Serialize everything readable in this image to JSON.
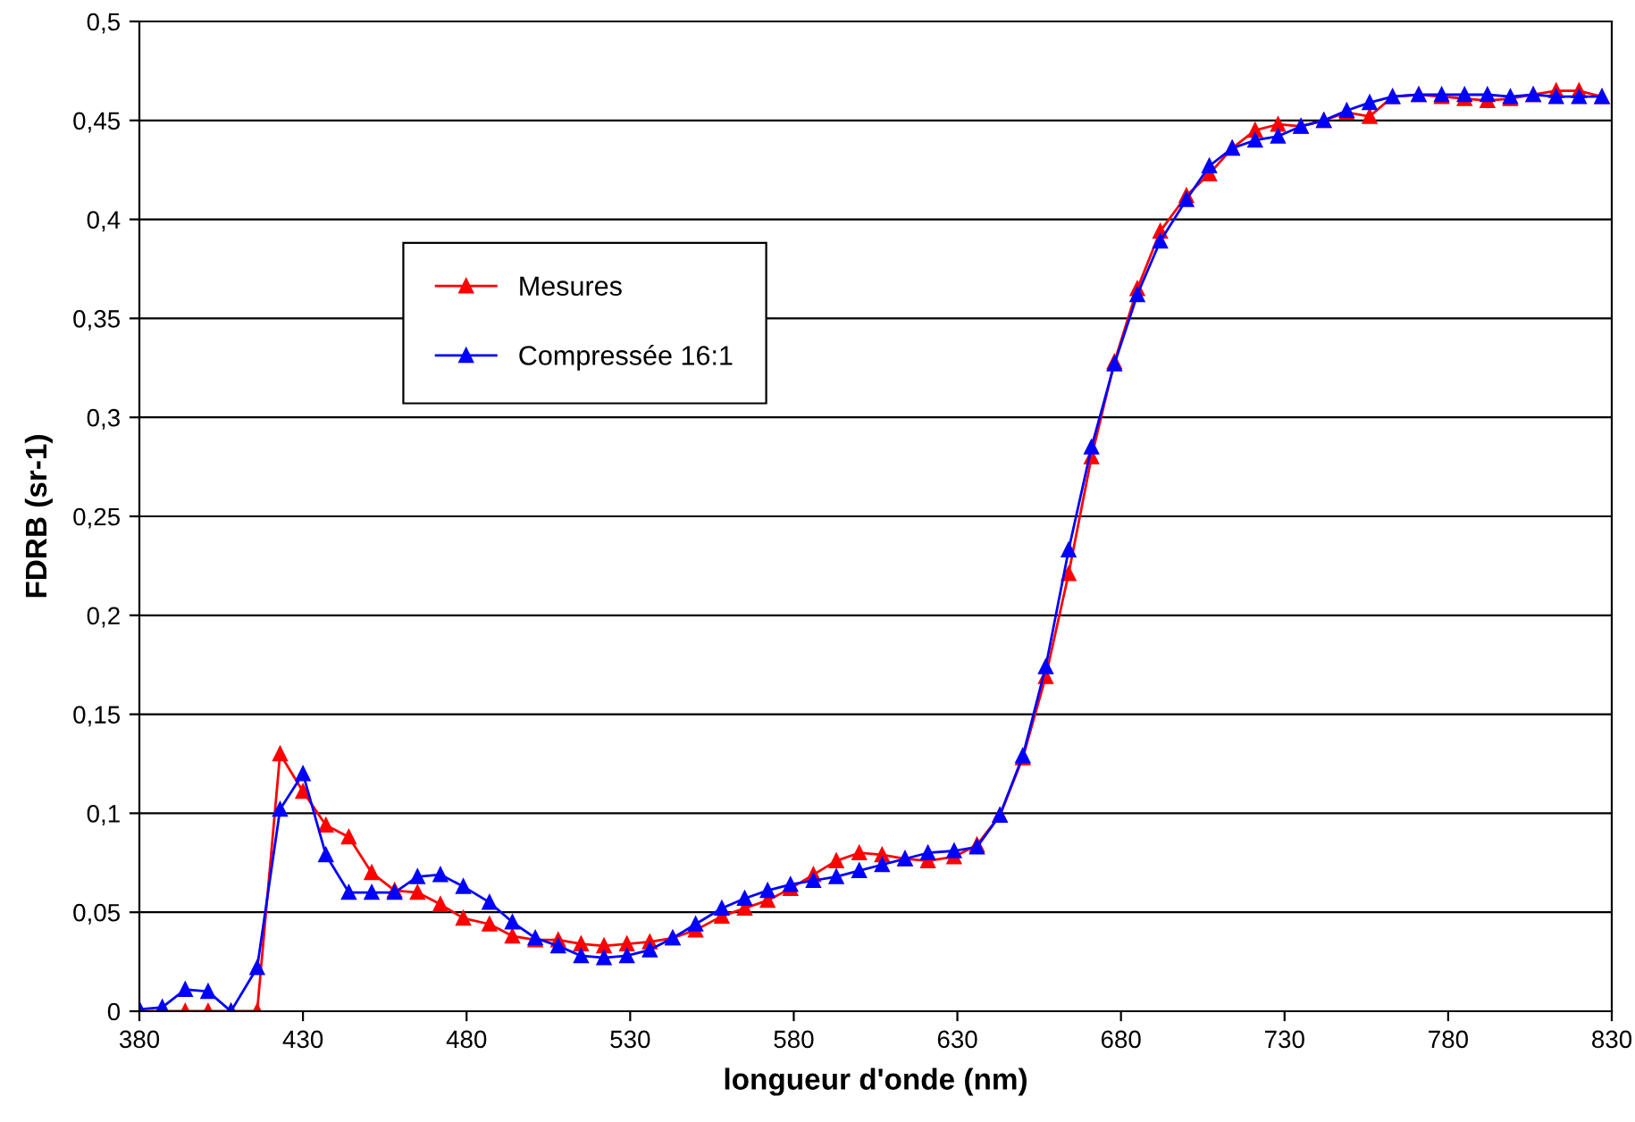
{
  "chart_data": {
    "type": "line",
    "xlabel": "longueur d'onde (nm)",
    "ylabel": "FDRB (sr-1)",
    "x": [
      380,
      387,
      394,
      401,
      408,
      416,
      423,
      430,
      437,
      444,
      451,
      458,
      465,
      472,
      479,
      487,
      494,
      501,
      508,
      515,
      522,
      529,
      536,
      543,
      550,
      558,
      565,
      572,
      579,
      586,
      593,
      600,
      607,
      614,
      621,
      629,
      636,
      643,
      650,
      657,
      664,
      671,
      678,
      685,
      692,
      700,
      707,
      714,
      721,
      728,
      735,
      742,
      749,
      756,
      763,
      771,
      778,
      785,
      792,
      799,
      806,
      813,
      820,
      827
    ],
    "series": [
      {
        "name": "Mesures",
        "color": "#ff0000",
        "values": [
          0,
          0,
          0,
          0,
          0,
          0,
          0.13,
          0.111,
          0.094,
          0.088,
          0.07,
          0.061,
          0.06,
          0.054,
          0.047,
          0.044,
          0.038,
          0.036,
          0.036,
          0.034,
          0.033,
          0.034,
          0.035,
          0.037,
          0.041,
          0.048,
          0.052,
          0.056,
          0.062,
          0.069,
          0.076,
          0.08,
          0.079,
          0.077,
          0.076,
          0.078,
          0.084,
          0.099,
          0.128,
          0.169,
          0.221,
          0.28,
          0.328,
          0.365,
          0.394,
          0.412,
          0.423,
          0.436,
          0.445,
          0.448,
          0.447,
          0.45,
          0.454,
          0.452,
          0.462,
          0.463,
          0.462,
          0.461,
          0.46,
          0.461,
          0.463,
          0.465,
          0.465,
          0.462
        ]
      },
      {
        "name": "Compressée 16:1",
        "color": "#0000ff",
        "values": [
          0.001,
          0.002,
          0.011,
          0.01,
          0,
          0.022,
          0.102,
          0.12,
          0.079,
          0.06,
          0.06,
          0.06,
          0.068,
          0.069,
          0.063,
          0.055,
          0.045,
          0.037,
          0.033,
          0.028,
          0.027,
          0.028,
          0.031,
          0.037,
          0.044,
          0.052,
          0.057,
          0.061,
          0.064,
          0.066,
          0.068,
          0.071,
          0.074,
          0.077,
          0.08,
          0.081,
          0.083,
          0.099,
          0.129,
          0.174,
          0.233,
          0.285,
          0.327,
          0.362,
          0.389,
          0.41,
          0.427,
          0.436,
          0.44,
          0.442,
          0.447,
          0.45,
          0.455,
          0.459,
          0.462,
          0.463,
          0.463,
          0.463,
          0.463,
          0.462,
          0.463,
          0.462,
          0.462,
          0.462
        ]
      }
    ],
    "xlim": [
      380,
      830
    ],
    "xticks": [
      380,
      430,
      480,
      530,
      580,
      630,
      680,
      730,
      780,
      830
    ],
    "ylim": [
      0,
      0.5
    ],
    "yticks": [
      0,
      {
        "value": 0.05,
        "label": "0,05"
      },
      {
        "value": 0.1,
        "label": "0,1"
      },
      {
        "value": 0.15,
        "label": "0,15"
      },
      {
        "value": 0.2,
        "label": "0,2"
      },
      {
        "value": 0.25,
        "label": "0,25"
      },
      {
        "value": 0.3,
        "label": "0,3"
      },
      {
        "value": 0.35,
        "label": "0,35"
      },
      {
        "value": 0.4,
        "label": "0,4"
      },
      {
        "value": 0.45,
        "label": "0,45"
      },
      {
        "value": 0.5,
        "label": "0,5"
      }
    ],
    "grid": "y",
    "legend": "top left",
    "marker": "triangle",
    "line_style": "solid"
  }
}
